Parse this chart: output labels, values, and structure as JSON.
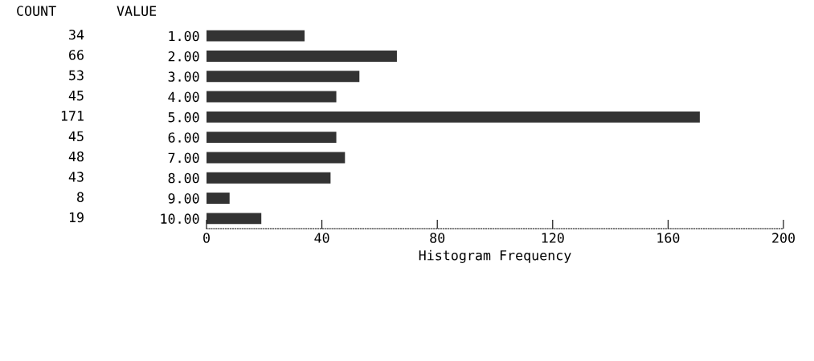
{
  "chart_data": {
    "type": "bar",
    "orientation": "horizontal",
    "xlabel": "Histogram Frequency",
    "categories": [
      "1.00",
      "2.00",
      "3.00",
      "4.00",
      "5.00",
      "6.00",
      "7.00",
      "8.00",
      "9.00",
      "10.00"
    ],
    "values": [
      34,
      66,
      53,
      45,
      171,
      45,
      48,
      43,
      8,
      19
    ],
    "color": "#333333",
    "data_labels": true,
    "xlim": [
      0,
      200
    ],
    "xticks": [
      0,
      40,
      80,
      120,
      160,
      200
    ],
    "grid": false,
    "annotations": [
      "COUNT",
      "VALUE"
    ]
  }
}
